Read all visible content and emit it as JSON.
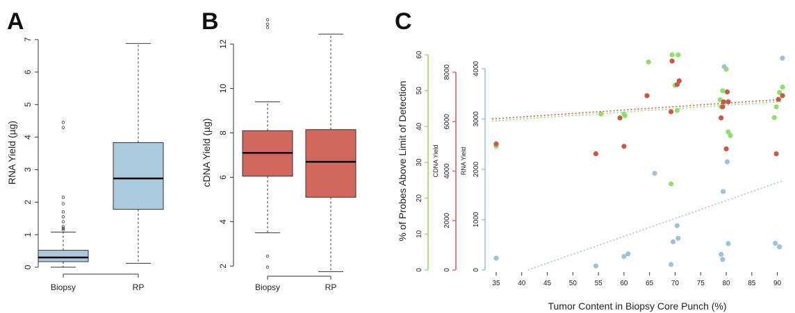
{
  "panels": {
    "a": {
      "letter": "A"
    },
    "b": {
      "letter": "B"
    },
    "c": {
      "letter": "C"
    }
  },
  "colors": {
    "rna_blue": "#a9cbdd",
    "cdna_red": "#d2675c",
    "pct_green": "#8fe06b",
    "dot_red": "#c75a47",
    "dot_blue": "#9ec3d7"
  },
  "chart_data": [
    {
      "type": "box",
      "ylabel": "RNA Yield (µg)",
      "categories": [
        "Biopsy",
        "RP"
      ],
      "ylim": [
        0,
        7
      ],
      "yticks": [
        0,
        1,
        2,
        3,
        4,
        5,
        6,
        7
      ],
      "boxes": [
        {
          "category": "Biopsy",
          "min": 0.0,
          "q1": 0.17,
          "median": 0.3,
          "q3": 0.52,
          "max": 1.08,
          "outliers": [
            1.15,
            1.2,
            1.25,
            1.4,
            1.55,
            1.7,
            1.95,
            2.15,
            4.3,
            4.45
          ]
        },
        {
          "category": "RP",
          "min": 0.12,
          "q1": 1.78,
          "median": 2.73,
          "q3": 3.83,
          "max": 6.88,
          "outliers": []
        }
      ]
    },
    {
      "type": "box",
      "ylabel": "cDNA Yield (µg)",
      "categories": [
        "Biopsy",
        "RP"
      ],
      "ylim": [
        1.7,
        13.3
      ],
      "yticks": [
        2,
        4,
        6,
        8,
        10,
        12
      ],
      "boxes": [
        {
          "category": "Biopsy",
          "min": 3.5,
          "q1": 6.05,
          "median": 7.1,
          "q3": 8.1,
          "max": 9.4,
          "outliers": [
            1.95,
            2.45,
            12.75,
            12.9,
            13.1
          ]
        },
        {
          "category": "RP",
          "min": 1.75,
          "q1": 5.1,
          "median": 6.7,
          "q3": 8.15,
          "max": 12.45,
          "outliers": []
        }
      ]
    },
    {
      "type": "scatter",
      "xlabel": "Tumor Content in Biopsy Core Punch (%)",
      "ylabel": "% of Probes Above Limit of Detection",
      "xlim": [
        33.5,
        91
      ],
      "xticks": [
        35,
        40,
        45,
        50,
        55,
        60,
        65,
        70,
        75,
        80,
        85,
        90
      ],
      "axes": [
        {
          "label": "",
          "ticks": [
            0,
            10,
            20,
            30,
            40,
            50,
            60
          ],
          "ylim": [
            0,
            60
          ]
        },
        {
          "label": "CDNA Yield",
          "ticks": [
            0,
            2000,
            4000,
            6000,
            8000
          ],
          "ylim": [
            0,
            8500
          ]
        },
        {
          "label": "RNA Yield",
          "ticks": [
            0,
            1000,
            2000,
            3000,
            4000
          ],
          "ylim": [
            0,
            4200
          ]
        }
      ],
      "series": [
        {
          "axis": 0,
          "color": "#8fe06b",
          "trend": [
            [
              33.5,
              41.5
            ],
            [
              91,
              47
            ]
          ],
          "x": [
            35,
            55.5,
            60,
            60.2,
            64.8,
            69.2,
            69.4,
            70,
            70.4,
            70.6,
            78.8,
            79,
            79.3,
            80,
            80.4,
            80.8,
            89.4,
            89.8,
            90.4,
            91
          ],
          "y": [
            34.5,
            43.5,
            43.5,
            43,
            58,
            24,
            60,
            51.5,
            44.5,
            60,
            47.5,
            45.5,
            50,
            56,
            38.5,
            37.5,
            42.5,
            45.5,
            49.5,
            51
          ]
        },
        {
          "axis": 1,
          "color": "#c75a47",
          "trend": [
            [
              33.5,
              6100
            ],
            [
              91,
              6900
            ]
          ],
          "x": [
            35,
            54.5,
            59.2,
            60,
            64.5,
            69.2,
            69.4,
            70.4,
            70.8,
            79,
            79.3,
            79.5,
            80,
            80.2,
            80.4,
            89.8,
            90.2,
            91
          ],
          "y": [
            5100,
            4700,
            6150,
            5000,
            7050,
            6400,
            8450,
            7500,
            7650,
            6150,
            6600,
            6800,
            4900,
            7200,
            6800,
            4700,
            6900,
            7050
          ]
        },
        {
          "axis": 2,
          "color": "#9ec3d7",
          "trend": [
            [
              41.2,
              0
            ],
            [
              91,
              1770
            ]
          ],
          "x": [
            35,
            54.5,
            60,
            60.8,
            66,
            69.2,
            69.6,
            70.4,
            70.6,
            79,
            79.3,
            79.4,
            79.6,
            80.2,
            80.4,
            89.6,
            90.4,
            91
          ],
          "y": [
            235,
            80,
            270,
            320,
            1920,
            110,
            560,
            880,
            630,
            310,
            210,
            1560,
            4040,
            2150,
            525,
            530,
            460,
            4210
          ]
        }
      ]
    }
  ]
}
